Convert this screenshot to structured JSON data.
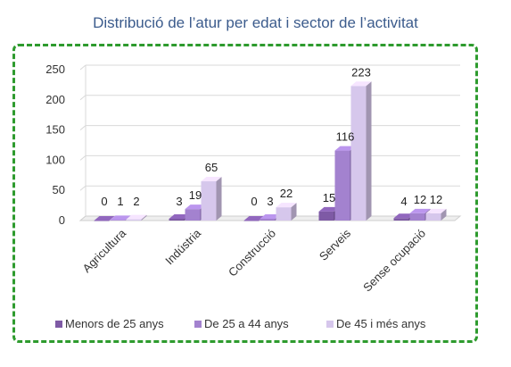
{
  "chart_data": {
    "type": "bar",
    "title": "Distribució de l’atur per edat i sector de l’activitat",
    "categories": [
      "Agricultura",
      "Indústria",
      "Construcció",
      "Serveis",
      "Sense ocupació"
    ],
    "series": [
      {
        "name": "Menors de 25 anys",
        "values": [
          0,
          3,
          0,
          15,
          4
        ],
        "color": "#7e5aa5"
      },
      {
        "name": "De 25 a 44 anys",
        "values": [
          1,
          19,
          3,
          116,
          12
        ],
        "color": "#a382cf"
      },
      {
        "name": "De 45 i més anys",
        "values": [
          2,
          65,
          22,
          223,
          12
        ],
        "color": "#d6c7ec"
      }
    ],
    "y_ticks": [
      "0",
      "50",
      "100",
      "150",
      "200",
      "250"
    ],
    "ylim": [
      0,
      250
    ],
    "grid": true,
    "legend_position": "bottom",
    "style": "3d-clustered-column"
  }
}
